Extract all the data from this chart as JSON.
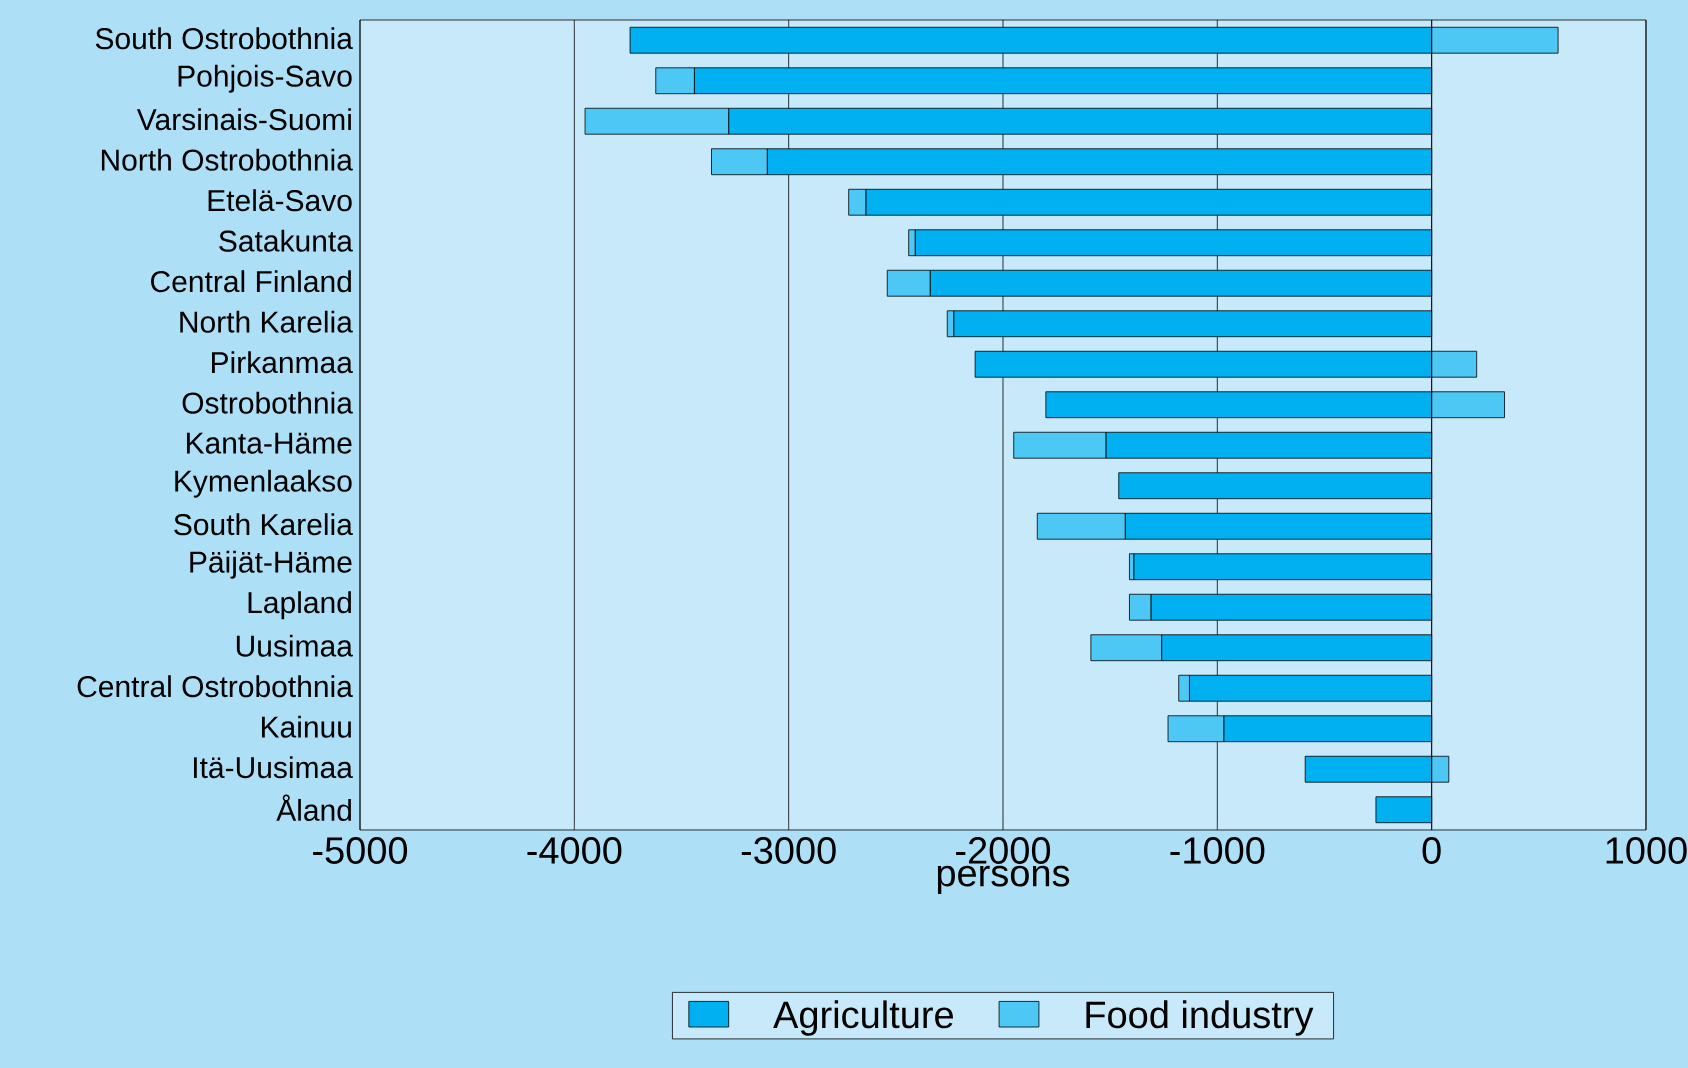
{
  "chart_data": {
    "type": "bar",
    "orientation": "horizontal",
    "stacked": true,
    "xlabel": "persons",
    "categories": [
      "South Ostrobothnia",
      "Pohjois-Savo",
      "Varsinais-Suomi",
      "North Ostrobothnia",
      "Etelä-Savo",
      "Satakunta",
      "Central Finland",
      "North Karelia",
      "Pirkanmaa",
      "Ostrobothnia",
      "Kanta-Häme",
      "Kymenlaakso",
      "South Karelia",
      "Päijät-Häme",
      "Lapland",
      "Uusimaa",
      "Central Ostrobothnia",
      "Kainuu",
      "Itä-Uusimaa",
      "Åland"
    ],
    "series": [
      {
        "name": "Agriculture",
        "color": "#00b0f0",
        "values": [
          -3740,
          -3440,
          -3280,
          -3100,
          -2640,
          -2410,
          -2340,
          -2230,
          -2130,
          -1800,
          -1520,
          -1460,
          -1430,
          -1390,
          -1310,
          -1260,
          -1130,
          -970,
          -590,
          -260
        ]
      },
      {
        "name": "Food industry",
        "color": "#4dc8f5",
        "values": [
          590,
          -180,
          -670,
          -260,
          -80,
          -30,
          -200,
          -30,
          210,
          340,
          -430,
          0,
          -410,
          -20,
          -100,
          -330,
          -50,
          -260,
          80,
          0
        ]
      }
    ],
    "xlim": [
      -5000,
      1000
    ],
    "xticks": [
      -5000,
      -4000,
      -3000,
      -2000,
      -1000,
      0,
      1000
    ],
    "grid": "x",
    "legend": "bottom"
  }
}
